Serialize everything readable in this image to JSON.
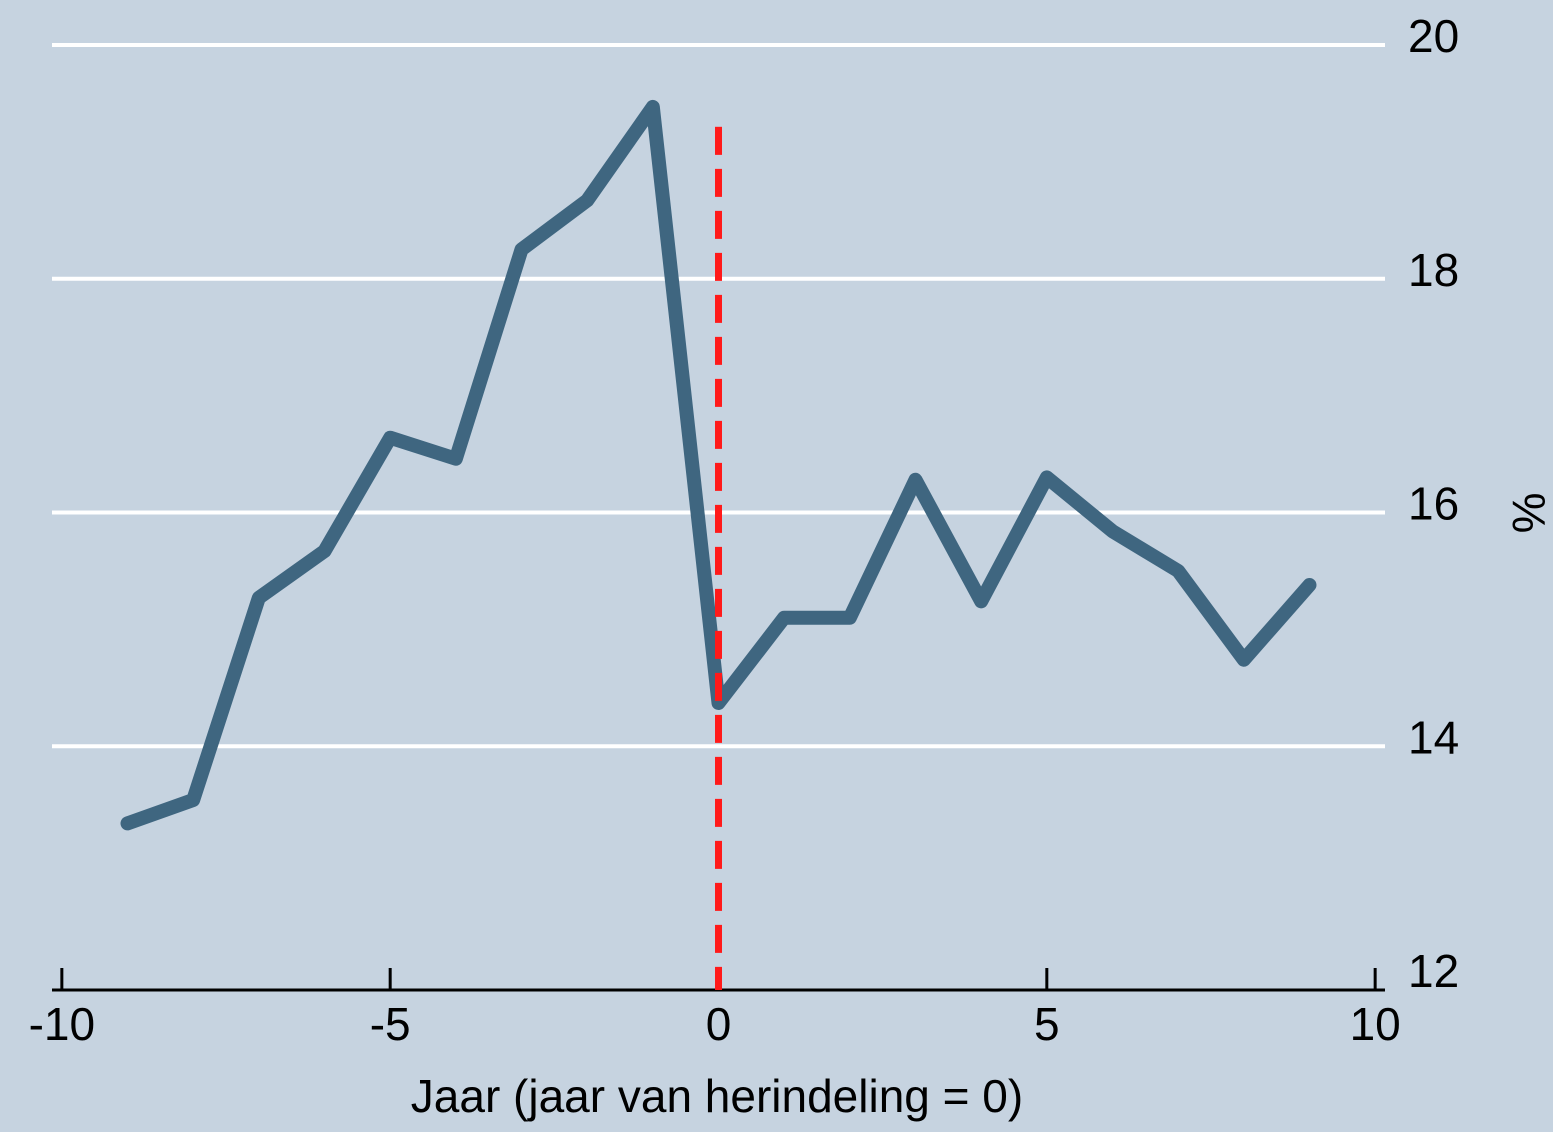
{
  "chart_data": {
    "type": "line",
    "xlabel": "Jaar (jaar van herindeling = 0)",
    "ylabel": "%",
    "x": [
      -9,
      -8,
      -7,
      -6,
      -5,
      -4,
      -3,
      -2,
      -1,
      0,
      1,
      2,
      3,
      4,
      5,
      6,
      7,
      8,
      9
    ],
    "series": [
      {
        "color": "#3f6680",
        "values": [
          13.34,
          13.54,
          15.27,
          15.67,
          16.64,
          16.46,
          18.25,
          18.67,
          19.47,
          14.37,
          15.1,
          15.1,
          16.28,
          15.24,
          16.3,
          15.84,
          15.5,
          14.74,
          15.38
        ]
      }
    ],
    "xlim": [
      -10.15,
      10.15
    ],
    "xticks": [
      -10,
      -5,
      0,
      5,
      10
    ],
    "ylim": [
      12,
      20
    ],
    "yticks": [
      12,
      14,
      16,
      18,
      20
    ],
    "grid": true,
    "vline": {
      "x": 0,
      "ylim": [
        12,
        19.3
      ],
      "color": "#ff1a1a"
    }
  }
}
